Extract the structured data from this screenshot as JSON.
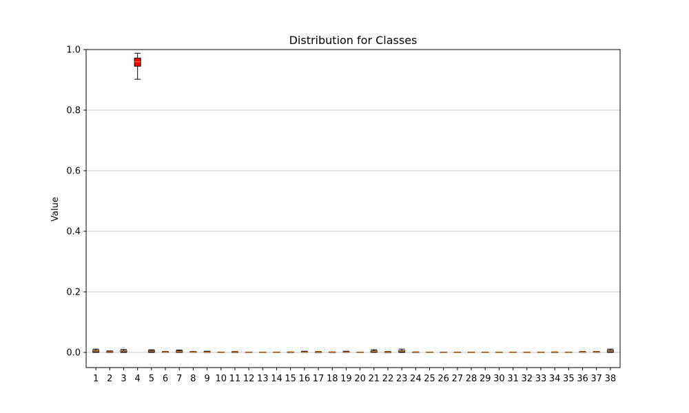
{
  "chart_data": {
    "type": "box",
    "title": "Distribution for Classes",
    "xlabel": "",
    "ylabel": "Value",
    "ylim": [
      -0.05,
      1.0
    ],
    "yticks": [
      0.0,
      0.2,
      0.4,
      0.6,
      0.8,
      1.0
    ],
    "ytick_labels": [
      "0.0",
      "0.2",
      "0.4",
      "0.6",
      "0.8",
      "1.0"
    ],
    "grid": "horizontal",
    "highlight_color": "#ff0000",
    "median_color": "#ff7f0e",
    "categories": [
      "1",
      "2",
      "3",
      "4",
      "5",
      "6",
      "7",
      "8",
      "9",
      "10",
      "11",
      "12",
      "13",
      "14",
      "15",
      "16",
      "17",
      "18",
      "19",
      "20",
      "21",
      "22",
      "23",
      "24",
      "25",
      "26",
      "27",
      "28",
      "29",
      "30",
      "31",
      "32",
      "33",
      "34",
      "35",
      "36",
      "37",
      "38"
    ],
    "boxes": [
      {
        "whislo": 0.0,
        "q1": 0.002,
        "med": 0.005,
        "q3": 0.007,
        "whishi": 0.011,
        "highlight": false
      },
      {
        "whislo": 0.0,
        "q1": 0.001,
        "med": 0.002,
        "q3": 0.003,
        "whishi": 0.005,
        "highlight": false
      },
      {
        "whislo": 0.0,
        "q1": 0.002,
        "med": 0.004,
        "q3": 0.006,
        "whishi": 0.01,
        "highlight": false
      },
      {
        "whislo": 0.902,
        "q1": 0.945,
        "med": 0.96,
        "q3": 0.972,
        "whishi": 0.988,
        "highlight": true
      },
      {
        "whislo": 0.0,
        "q1": 0.002,
        "med": 0.004,
        "q3": 0.006,
        "whishi": 0.009,
        "highlight": false
      },
      {
        "whislo": 0.0,
        "q1": 0.001,
        "med": 0.001,
        "q3": 0.002,
        "whishi": 0.003,
        "highlight": false
      },
      {
        "whislo": 0.0,
        "q1": 0.001,
        "med": 0.003,
        "q3": 0.005,
        "whishi": 0.008,
        "highlight": false
      },
      {
        "whislo": 0.0,
        "q1": 0.001,
        "med": 0.001,
        "q3": 0.002,
        "whishi": 0.003,
        "highlight": false
      },
      {
        "whislo": 0.0,
        "q1": 0.001,
        "med": 0.001,
        "q3": 0.002,
        "whishi": 0.004,
        "highlight": false
      },
      {
        "whislo": 0.0,
        "q1": 0.0,
        "med": 0.0,
        "q3": 0.001,
        "whishi": 0.001,
        "highlight": false
      },
      {
        "whislo": 0.0,
        "q1": 0.0,
        "med": 0.001,
        "q3": 0.001,
        "whishi": 0.003,
        "highlight": false
      },
      {
        "whislo": 0.0,
        "q1": 0.0,
        "med": 0.0,
        "q3": 0.001,
        "whishi": 0.001,
        "highlight": false
      },
      {
        "whislo": 0.0,
        "q1": 0.0,
        "med": 0.0,
        "q3": 0.001,
        "whishi": 0.001,
        "highlight": false
      },
      {
        "whislo": 0.0,
        "q1": 0.0,
        "med": 0.0,
        "q3": 0.001,
        "whishi": 0.001,
        "highlight": false
      },
      {
        "whislo": 0.0,
        "q1": 0.0,
        "med": 0.001,
        "q3": 0.001,
        "whishi": 0.002,
        "highlight": false
      },
      {
        "whislo": 0.0,
        "q1": 0.001,
        "med": 0.001,
        "q3": 0.002,
        "whishi": 0.004,
        "highlight": false
      },
      {
        "whislo": 0.0,
        "q1": 0.0,
        "med": 0.001,
        "q3": 0.001,
        "whishi": 0.003,
        "highlight": false
      },
      {
        "whislo": 0.0,
        "q1": 0.0,
        "med": 0.001,
        "q3": 0.001,
        "whishi": 0.002,
        "highlight": false
      },
      {
        "whislo": 0.0,
        "q1": 0.001,
        "med": 0.001,
        "q3": 0.002,
        "whishi": 0.004,
        "highlight": false
      },
      {
        "whislo": 0.0,
        "q1": 0.0,
        "med": 0.0,
        "q3": 0.001,
        "whishi": 0.001,
        "highlight": false
      },
      {
        "whislo": 0.0,
        "q1": 0.001,
        "med": 0.003,
        "q3": 0.005,
        "whishi": 0.009,
        "highlight": false
      },
      {
        "whislo": 0.0,
        "q1": 0.0,
        "med": 0.001,
        "q3": 0.001,
        "whishi": 0.003,
        "highlight": false
      },
      {
        "whislo": 0.0,
        "q1": 0.002,
        "med": 0.004,
        "q3": 0.006,
        "whishi": 0.011,
        "highlight": false
      },
      {
        "whislo": 0.0,
        "q1": 0.0,
        "med": 0.001,
        "q3": 0.001,
        "whishi": 0.002,
        "highlight": false
      },
      {
        "whislo": 0.0,
        "q1": 0.0,
        "med": 0.0,
        "q3": 0.001,
        "whishi": 0.001,
        "highlight": false
      },
      {
        "whislo": 0.0,
        "q1": 0.0,
        "med": 0.0,
        "q3": 0.001,
        "whishi": 0.001,
        "highlight": false
      },
      {
        "whislo": 0.0,
        "q1": 0.0,
        "med": 0.0,
        "q3": 0.001,
        "whishi": 0.001,
        "highlight": false
      },
      {
        "whislo": 0.0,
        "q1": 0.0,
        "med": 0.0,
        "q3": 0.001,
        "whishi": 0.001,
        "highlight": false
      },
      {
        "whislo": 0.0,
        "q1": 0.0,
        "med": 0.0,
        "q3": 0.001,
        "whishi": 0.001,
        "highlight": false
      },
      {
        "whislo": 0.0,
        "q1": 0.0,
        "med": 0.0,
        "q3": 0.001,
        "whishi": 0.001,
        "highlight": false
      },
      {
        "whislo": 0.0,
        "q1": 0.0,
        "med": 0.0,
        "q3": 0.001,
        "whishi": 0.001,
        "highlight": false
      },
      {
        "whislo": 0.0,
        "q1": 0.0,
        "med": 0.0,
        "q3": 0.001,
        "whishi": 0.001,
        "highlight": false
      },
      {
        "whislo": 0.0,
        "q1": 0.0,
        "med": 0.0,
        "q3": 0.001,
        "whishi": 0.001,
        "highlight": false
      },
      {
        "whislo": 0.0,
        "q1": 0.0,
        "med": 0.001,
        "q3": 0.001,
        "whishi": 0.002,
        "highlight": false
      },
      {
        "whislo": 0.0,
        "q1": 0.0,
        "med": 0.0,
        "q3": 0.001,
        "whishi": 0.001,
        "highlight": false
      },
      {
        "whislo": 0.0,
        "q1": 0.001,
        "med": 0.001,
        "q3": 0.002,
        "whishi": 0.003,
        "highlight": false
      },
      {
        "whislo": 0.0,
        "q1": 0.001,
        "med": 0.001,
        "q3": 0.002,
        "whishi": 0.003,
        "highlight": false
      },
      {
        "whislo": 0.0,
        "q1": 0.002,
        "med": 0.004,
        "q3": 0.007,
        "whishi": 0.011,
        "highlight": false
      }
    ]
  }
}
